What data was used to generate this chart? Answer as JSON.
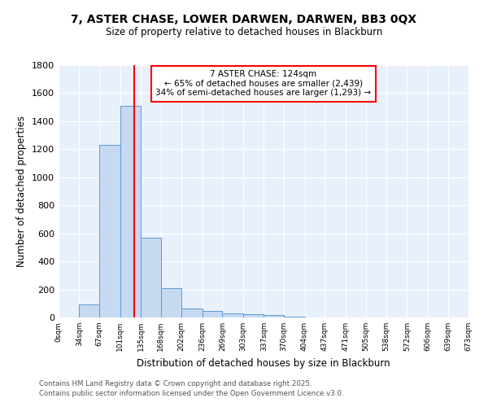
{
  "title": "7, ASTER CHASE, LOWER DARWEN, DARWEN, BB3 0QX",
  "subtitle": "Size of property relative to detached houses in Blackburn",
  "xlabel": "Distribution of detached houses by size in Blackburn",
  "ylabel": "Number of detached properties",
  "bar_edges": [
    0,
    34,
    67,
    101,
    135,
    168,
    202,
    236,
    269,
    303,
    337,
    370,
    404,
    437,
    471,
    505,
    538,
    572,
    606,
    639,
    673
  ],
  "bar_heights": [
    0,
    95,
    1230,
    1510,
    570,
    210,
    65,
    47,
    30,
    22,
    15,
    8,
    0,
    0,
    0,
    0,
    0,
    0,
    0,
    0
  ],
  "bar_color": "#c6d9f1",
  "bar_edgecolor": "#5b9bd5",
  "vline_x": 124,
  "vline_color": "red",
  "annotation_title": "7 ASTER CHASE: 124sqm",
  "annotation_line1": "← 65% of detached houses are smaller (2,439)",
  "annotation_line2": "34% of semi-detached houses are larger (1,293) →",
  "annotation_box_edgecolor": "red",
  "annotation_box_facecolor": "white",
  "ylim": [
    0,
    1800
  ],
  "yticks": [
    0,
    200,
    400,
    600,
    800,
    1000,
    1200,
    1400,
    1600,
    1800
  ],
  "xtick_labels": [
    "0sqm",
    "34sqm",
    "67sqm",
    "101sqm",
    "135sqm",
    "168sqm",
    "202sqm",
    "236sqm",
    "269sqm",
    "303sqm",
    "337sqm",
    "370sqm",
    "404sqm",
    "437sqm",
    "471sqm",
    "505sqm",
    "538sqm",
    "572sqm",
    "606sqm",
    "639sqm",
    "673sqm"
  ],
  "background_color": "#e8f0fb",
  "grid_color": "white",
  "footer1": "Contains HM Land Registry data © Crown copyright and database right 2025.",
  "footer2": "Contains public sector information licensed under the Open Government Licence v3.0."
}
